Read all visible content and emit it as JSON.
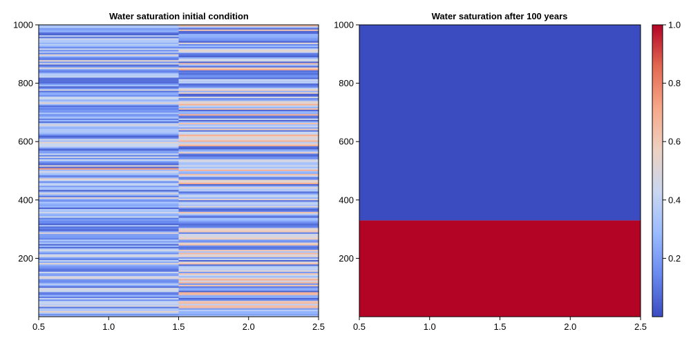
{
  "colormap": {
    "name": "coolwarm",
    "stops": [
      "#3b4cc0",
      "#6889ee",
      "#9abbff",
      "#c9d7f0",
      "#edd1c2",
      "#f7a889",
      "#e26952",
      "#b40426"
    ]
  },
  "chart_data": [
    {
      "type": "heatmap",
      "title": "Water saturation initial condition",
      "xlim": [
        0.5,
        2.5
      ],
      "ylim": [
        0,
        1000
      ],
      "xticks": [
        "0.5",
        "1.0",
        "1.5",
        "2.0",
        "2.5"
      ],
      "yticks": [
        "200",
        "400",
        "600",
        "800",
        "1000"
      ],
      "columns": [
        {
          "x_range": [
            0.5,
            1.5
          ],
          "typical_saturation_range": [
            0.05,
            0.55
          ],
          "description_value_mean": 0.25
        },
        {
          "x_range": [
            1.5,
            2.5
          ],
          "typical_saturation_range": [
            0.05,
            0.7
          ],
          "description_value_mean": 0.28
        }
      ],
      "notable_rows": [
        {
          "column": 0,
          "y": 950,
          "value": 0.45
        },
        {
          "column": 0,
          "y": 505,
          "value": 0.75
        },
        {
          "column": 0,
          "y": 210,
          "value": 0.45
        },
        {
          "column": 1,
          "y": 845,
          "value": 0.7
        },
        {
          "column": 1,
          "y": 640,
          "value": 0.6
        },
        {
          "column": 1,
          "y": 290,
          "value": 0.6
        },
        {
          "column": 1,
          "y": 45,
          "value": 0.65
        }
      ]
    },
    {
      "type": "heatmap",
      "title": "Water saturation after 100 years",
      "xlim": [
        0.5,
        2.5
      ],
      "ylim": [
        0,
        1000
      ],
      "xticks": [
        "0.5",
        "1.0",
        "1.5",
        "2.0",
        "2.5"
      ],
      "yticks": [
        "200",
        "400",
        "600",
        "800",
        "1000"
      ],
      "regions": [
        {
          "y_range": [
            0,
            330
          ],
          "value": 1.0
        },
        {
          "y_range": [
            330,
            1000
          ],
          "value": 0.0
        }
      ]
    }
  ],
  "colorbar": {
    "range": [
      0.0,
      1.0
    ],
    "ticks": [
      "0.2",
      "0.4",
      "0.6",
      "0.8",
      "1.0"
    ]
  }
}
